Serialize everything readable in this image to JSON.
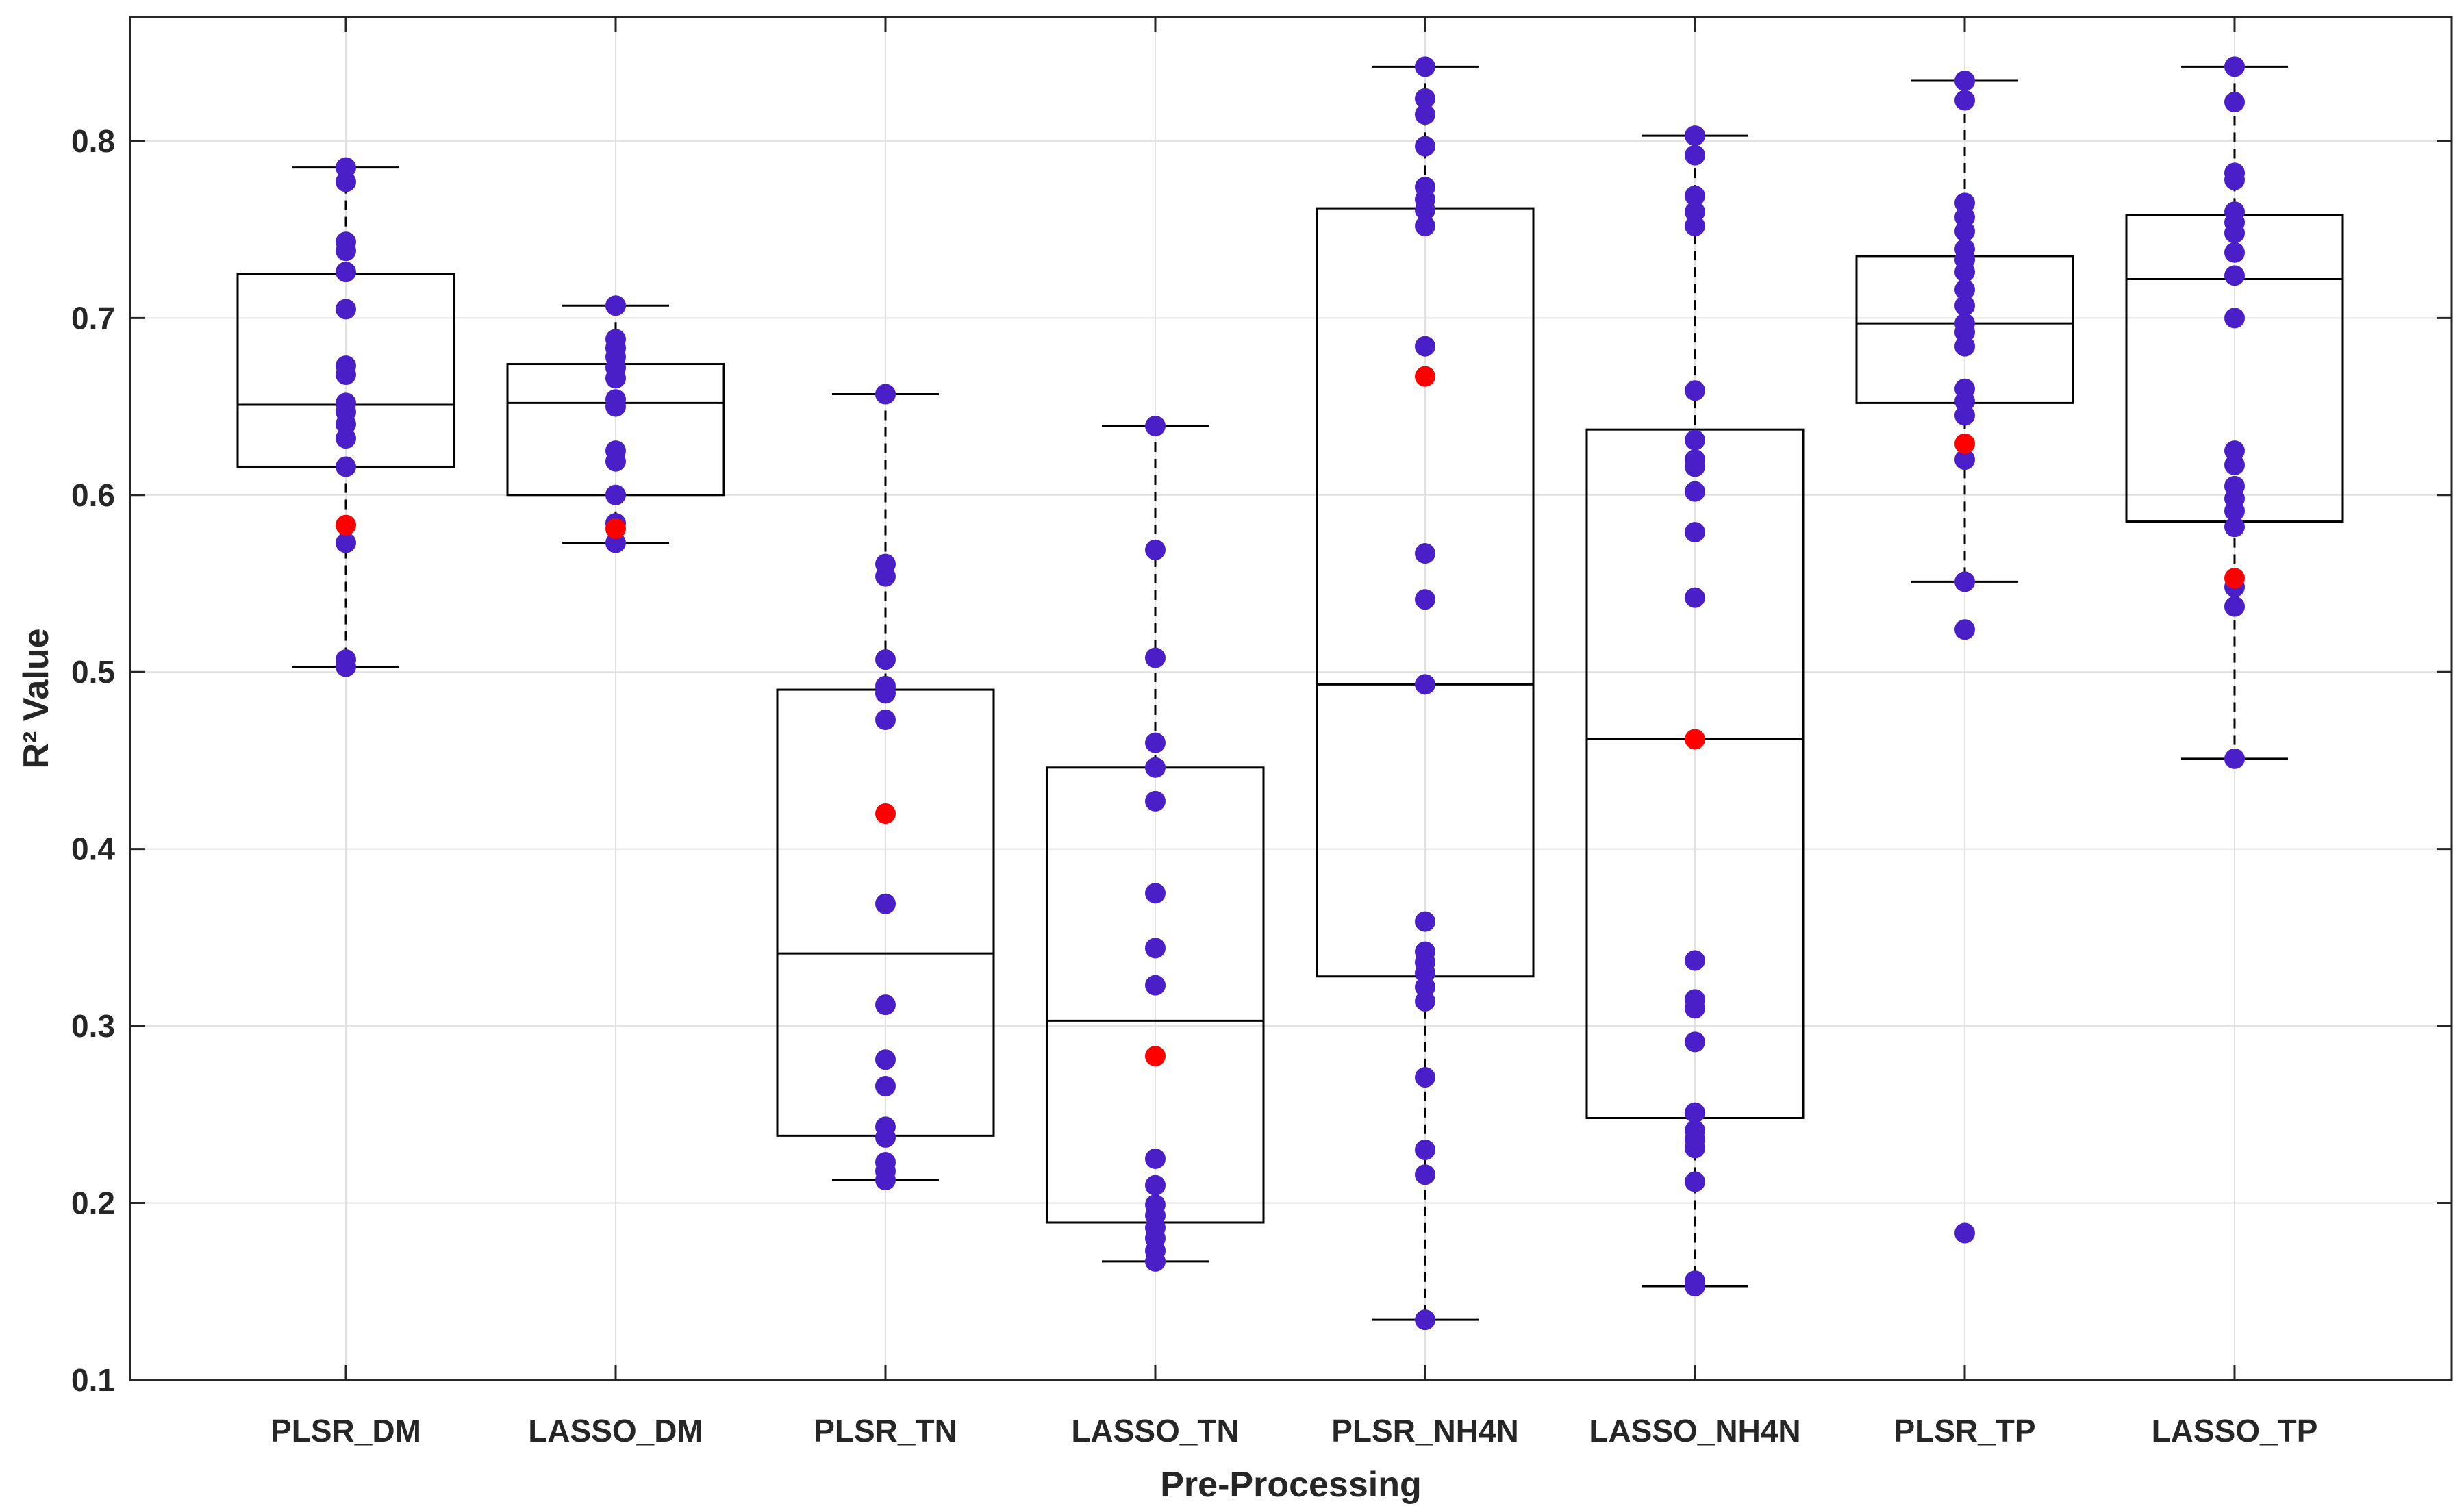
{
  "chart_data": {
    "type": "box",
    "title": "",
    "xlabel": "Pre-Processing",
    "ylabel": "R² Value",
    "ylim": [
      0.1,
      0.87
    ],
    "yticks": [
      0.1,
      0.2,
      0.3,
      0.4,
      0.5,
      0.6,
      0.7,
      0.8
    ],
    "ytick_labels": [
      "0.1",
      "0.2",
      "0.3",
      "0.4",
      "0.5",
      "0.6",
      "0.7",
      "0.8"
    ],
    "grid": true,
    "categories": [
      "PLSR_DM",
      "LASSO_DM",
      "PLSR_TN",
      "LASSO_TN",
      "PLSR_NH4N",
      "LASSO_NH4N",
      "PLSR_TP",
      "LASSO_TP"
    ],
    "colors": {
      "points": "#4a1fc7",
      "highlight": "#ff0000",
      "box": "#000000",
      "grid": "#e1e1e1",
      "axes": "#262626"
    },
    "boxes": [
      {
        "name": "PLSR_DM",
        "whisker_low": 0.503,
        "q1": 0.616,
        "median": 0.651,
        "q3": 0.725,
        "whisker_high": 0.785
      },
      {
        "name": "LASSO_DM",
        "whisker_low": 0.573,
        "q1": 0.6,
        "median": 0.652,
        "q3": 0.674,
        "whisker_high": 0.707
      },
      {
        "name": "PLSR_TN",
        "whisker_low": 0.213,
        "q1": 0.238,
        "median": 0.341,
        "q3": 0.49,
        "whisker_high": 0.657
      },
      {
        "name": "LASSO_TN",
        "whisker_low": 0.167,
        "q1": 0.189,
        "median": 0.303,
        "q3": 0.446,
        "whisker_high": 0.639
      },
      {
        "name": "PLSR_NH4N",
        "whisker_low": 0.134,
        "q1": 0.328,
        "median": 0.493,
        "q3": 0.762,
        "whisker_high": 0.842
      },
      {
        "name": "LASSO_NH4N",
        "whisker_low": 0.153,
        "q1": 0.248,
        "median": 0.462,
        "q3": 0.637,
        "whisker_high": 0.803
      },
      {
        "name": "PLSR_TP",
        "whisker_low": 0.551,
        "q1": 0.652,
        "median": 0.697,
        "q3": 0.735,
        "whisker_high": 0.834
      },
      {
        "name": "LASSO_TP",
        "whisker_low": 0.451,
        "q1": 0.585,
        "median": 0.722,
        "q3": 0.758,
        "whisker_high": 0.842
      }
    ],
    "points": [
      [
        0.785,
        0.777,
        0.743,
        0.738,
        0.726,
        0.705,
        0.673,
        0.668,
        0.652,
        0.647,
        0.64,
        0.632,
        0.616,
        0.573,
        0.507,
        0.503
      ],
      [
        0.707,
        0.688,
        0.683,
        0.678,
        0.672,
        0.666,
        0.654,
        0.65,
        0.625,
        0.619,
        0.6,
        0.584,
        0.573
      ],
      [
        0.657,
        0.561,
        0.554,
        0.507,
        0.492,
        0.488,
        0.473,
        0.369,
        0.312,
        0.281,
        0.266,
        0.243,
        0.237,
        0.223,
        0.218,
        0.213
      ],
      [
        0.639,
        0.569,
        0.508,
        0.46,
        0.446,
        0.427,
        0.375,
        0.344,
        0.323,
        0.225,
        0.21,
        0.199,
        0.193,
        0.186,
        0.18,
        0.173,
        0.167
      ],
      [
        0.842,
        0.824,
        0.815,
        0.797,
        0.774,
        0.767,
        0.761,
        0.752,
        0.684,
        0.567,
        0.541,
        0.493,
        0.359,
        0.342,
        0.336,
        0.33,
        0.322,
        0.314,
        0.271,
        0.23,
        0.216,
        0.134
      ],
      [
        0.803,
        0.792,
        0.769,
        0.76,
        0.752,
        0.659,
        0.631,
        0.62,
        0.616,
        0.602,
        0.579,
        0.542,
        0.337,
        0.315,
        0.31,
        0.291,
        0.251,
        0.241,
        0.236,
        0.231,
        0.212,
        0.156,
        0.153
      ],
      [
        0.834,
        0.823,
        0.765,
        0.757,
        0.749,
        0.739,
        0.733,
        0.726,
        0.716,
        0.707,
        0.697,
        0.692,
        0.684,
        0.66,
        0.653,
        0.645,
        0.62,
        0.551,
        0.524,
        0.183
      ],
      [
        0.842,
        0.822,
        0.782,
        0.778,
        0.76,
        0.754,
        0.748,
        0.737,
        0.724,
        0.7,
        0.625,
        0.617,
        0.605,
        0.598,
        0.591,
        0.582,
        0.548,
        0.537,
        0.451
      ]
    ],
    "highlight_points": [
      0.583,
      0.581,
      0.42,
      0.283,
      0.667,
      0.462,
      0.629,
      0.553
    ]
  }
}
